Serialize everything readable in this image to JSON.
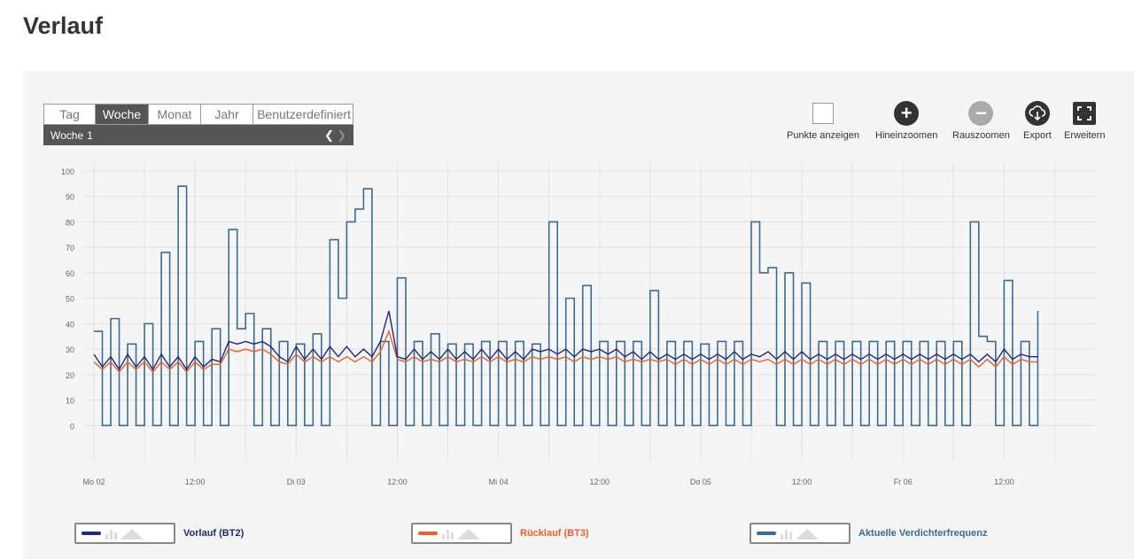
{
  "page": {
    "title": "Verlauf"
  },
  "period_selector": {
    "tabs": [
      "Tag",
      "Woche",
      "Monat",
      "Jahr",
      "Benutzerdefiniert"
    ],
    "active": "Woche",
    "sub_label": "Woche",
    "sub_value": "1",
    "prev_icon": "chevron-left-icon",
    "next_icon": "chevron-right-icon"
  },
  "toolbar": {
    "points_label": "Punkte anzeigen",
    "zoom_in_label": "Hineinzoomen",
    "zoom_out_label": "Rauszoomen",
    "export_label": "Export",
    "expand_label": "Erweitern"
  },
  "legend": [
    {
      "label": "Vorlauf (BT2)",
      "color": "#1f2a7a"
    },
    {
      "label": "Rücklauf (BT3)",
      "color": "#e8602c"
    },
    {
      "label": "Aktuelle Verdichterfrequenz",
      "color": "#3d6b8f"
    }
  ],
  "chart_data": {
    "type": "line",
    "ylim": [
      -10,
      100
    ],
    "yticks": [
      0,
      10,
      20,
      30,
      40,
      50,
      60,
      70,
      80,
      90,
      100
    ],
    "xlim": [
      0,
      119
    ],
    "xticks": [
      {
        "x": 0,
        "label": "Mo 02"
      },
      {
        "x": 12,
        "label": "12:00"
      },
      {
        "x": 24,
        "label": "Di 03"
      },
      {
        "x": 36,
        "label": "12:00"
      },
      {
        "x": 48,
        "label": "Mi 04"
      },
      {
        "x": 60,
        "label": "12:00"
      },
      {
        "x": 72,
        "label": "Do 05"
      },
      {
        "x": 84,
        "label": "12:00"
      },
      {
        "x": 96,
        "label": "Fr 06"
      },
      {
        "x": 108,
        "label": "12:00"
      }
    ],
    "grid": true,
    "legend_position": "bottom",
    "series": [
      {
        "name": "Vorlauf (BT2)",
        "color": "#1f2a7a",
        "x": [
          0,
          1,
          2,
          3,
          4,
          5,
          6,
          7,
          8,
          9,
          10,
          11,
          12,
          13,
          14,
          15,
          16,
          17,
          18,
          19,
          20,
          21,
          22,
          23,
          24,
          25,
          26,
          27,
          28,
          29,
          30,
          31,
          32,
          33,
          34,
          35,
          36,
          37,
          38,
          39,
          40,
          41,
          42,
          43,
          44,
          45,
          46,
          47,
          48,
          49,
          50,
          51,
          52,
          53,
          54,
          55,
          56,
          57,
          58,
          59,
          60,
          61,
          62,
          63,
          64,
          65,
          66,
          67,
          68,
          69,
          70,
          71,
          72,
          73,
          74,
          75,
          76,
          77,
          78,
          79,
          80,
          81,
          82,
          83,
          84,
          85,
          86,
          87,
          88,
          89,
          90,
          91,
          92,
          93,
          94,
          95,
          96,
          97,
          98,
          99,
          100,
          101,
          102,
          103,
          104,
          105,
          106,
          107,
          108,
          109,
          110,
          111,
          112
        ],
        "y": [
          28,
          23,
          27,
          22,
          28,
          23,
          27,
          22,
          28,
          23,
          27,
          22,
          27,
          23,
          26,
          25,
          33,
          32,
          33,
          32,
          33,
          31,
          27,
          25,
          31,
          26,
          30,
          26,
          31,
          27,
          31,
          27,
          30,
          27,
          33,
          45,
          27,
          26,
          30,
          26,
          29,
          26,
          30,
          26,
          29,
          26,
          30,
          26,
          30,
          26,
          29,
          26,
          30,
          29,
          30,
          28,
          30,
          27,
          30,
          29,
          30,
          28,
          30,
          27,
          29,
          26,
          29,
          26,
          28,
          26,
          28,
          26,
          28,
          26,
          28,
          26,
          29,
          26,
          28,
          27,
          29,
          26,
          29,
          26,
          29,
          26,
          28,
          26,
          28,
          26,
          28,
          26,
          28,
          26,
          28,
          26,
          28,
          26,
          28,
          26,
          28,
          26,
          28,
          26,
          28,
          25,
          28,
          25,
          30,
          26,
          28,
          27,
          27
        ]
      },
      {
        "name": "Rücklauf (BT3)",
        "color": "#e8602c",
        "x": [
          0,
          1,
          2,
          3,
          4,
          5,
          6,
          7,
          8,
          9,
          10,
          11,
          12,
          13,
          14,
          15,
          16,
          17,
          18,
          19,
          20,
          21,
          22,
          23,
          24,
          25,
          26,
          27,
          28,
          29,
          30,
          31,
          32,
          33,
          34,
          35,
          36,
          37,
          38,
          39,
          40,
          41,
          42,
          43,
          44,
          45,
          46,
          47,
          48,
          49,
          50,
          51,
          52,
          53,
          54,
          55,
          56,
          57,
          58,
          59,
          60,
          61,
          62,
          63,
          64,
          65,
          66,
          67,
          68,
          69,
          70,
          71,
          72,
          73,
          74,
          75,
          76,
          77,
          78,
          79,
          80,
          81,
          82,
          83,
          84,
          85,
          86,
          87,
          88,
          89,
          90,
          91,
          92,
          93,
          94,
          95,
          96,
          97,
          98,
          99,
          100,
          101,
          102,
          103,
          104,
          105,
          106,
          107,
          108,
          109,
          110,
          111,
          112
        ],
        "y": [
          25,
          22,
          25,
          21,
          25,
          22,
          25,
          21,
          25,
          22,
          25,
          21,
          25,
          22,
          24,
          24,
          30,
          29,
          30,
          29,
          30,
          28,
          25,
          24,
          28,
          25,
          27,
          25,
          27,
          25,
          27,
          25,
          27,
          25,
          29,
          37,
          26,
          25,
          27,
          25,
          26,
          25,
          27,
          25,
          26,
          25,
          27,
          25,
          27,
          25,
          26,
          25,
          27,
          26,
          27,
          26,
          27,
          25,
          27,
          26,
          27,
          26,
          27,
          25,
          26,
          25,
          26,
          25,
          26,
          24,
          26,
          24,
          26,
          24,
          26,
          24,
          26,
          24,
          26,
          25,
          26,
          24,
          26,
          24,
          26,
          24,
          26,
          24,
          26,
          24,
          26,
          24,
          26,
          24,
          26,
          24,
          26,
          24,
          26,
          24,
          26,
          24,
          26,
          24,
          26,
          23,
          26,
          23,
          27,
          24,
          26,
          25,
          25
        ]
      },
      {
        "name": "Aktuelle Verdichterfrequenz",
        "color": "#3d6b8f",
        "x": [
          0,
          1,
          2,
          3,
          4,
          5,
          6,
          7,
          8,
          9,
          10,
          11,
          12,
          13,
          14,
          15,
          16,
          17,
          18,
          19,
          20,
          21,
          22,
          23,
          24,
          25,
          26,
          27,
          28,
          29,
          30,
          31,
          32,
          33,
          34,
          35,
          36,
          37,
          38,
          39,
          40,
          41,
          42,
          43,
          44,
          45,
          46,
          47,
          48,
          49,
          50,
          51,
          52,
          53,
          54,
          55,
          56,
          57,
          58,
          59,
          60,
          61,
          62,
          63,
          64,
          65,
          66,
          67,
          68,
          69,
          70,
          71,
          72,
          73,
          74,
          75,
          76,
          77,
          78,
          79,
          80,
          81,
          82,
          83,
          84,
          85,
          86,
          87,
          88,
          89,
          90,
          91,
          92,
          93,
          94,
          95,
          96,
          97,
          98,
          99,
          100,
          101,
          102,
          103,
          104,
          105,
          106,
          107,
          108,
          109,
          110,
          111,
          112
        ],
        "y": [
          37,
          0,
          42,
          0,
          32,
          0,
          40,
          0,
          68,
          0,
          94,
          0,
          33,
          0,
          38,
          0,
          77,
          38,
          44,
          0,
          38,
          0,
          33,
          0,
          32,
          0,
          36,
          0,
          73,
          50,
          80,
          85,
          93,
          0,
          33,
          0,
          58,
          0,
          33,
          0,
          36,
          0,
          32,
          0,
          32,
          0,
          33,
          0,
          33,
          0,
          33,
          0,
          32,
          0,
          80,
          0,
          50,
          0,
          55,
          0,
          33,
          0,
          33,
          0,
          33,
          0,
          53,
          0,
          33,
          0,
          33,
          0,
          32,
          0,
          33,
          0,
          33,
          0,
          80,
          60,
          62,
          0,
          60,
          0,
          56,
          0,
          33,
          0,
          33,
          0,
          33,
          0,
          33,
          0,
          33,
          0,
          33,
          0,
          33,
          0,
          33,
          0,
          33,
          0,
          80,
          35,
          33,
          0,
          57,
          0,
          33,
          0,
          45
        ]
      }
    ]
  }
}
